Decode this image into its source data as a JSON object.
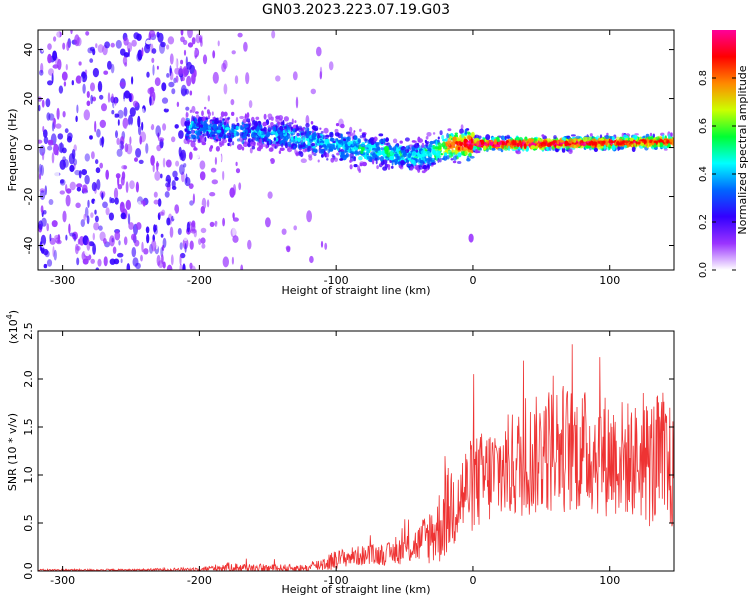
{
  "title": "GN03.2023.223.07.19.G03",
  "chart_data": [
    {
      "type": "heatmap",
      "xlabel": "Height of straight line (km)",
      "ylabel": "Frequency (Hz)",
      "xlim": [
        -318,
        147
      ],
      "ylim": [
        -50,
        48
      ],
      "xticks": [
        -300,
        -200,
        -100,
        0,
        100
      ],
      "yticks": [
        -40,
        -20,
        0,
        20,
        40
      ],
      "colorbar": {
        "label": "Normalized spectral amplitude",
        "range": [
          0,
          1
        ],
        "ticks": [
          "0.0",
          "0.2",
          "0.4",
          "0.6",
          "0.8"
        ],
        "tick_values": [
          0.0,
          0.2,
          0.4,
          0.6,
          0.8
        ],
        "colors": [
          "#ffffff",
          "#9a33ff",
          "#3300ff",
          "#0066ff",
          "#00ffff",
          "#00ff33",
          "#ccff00",
          "#ff8800",
          "#ff0000",
          "#ff0099"
        ]
      },
      "ridge": {
        "x": [
          -205,
          -180,
          -160,
          -140,
          -120,
          -100,
          -80,
          -60,
          -45,
          -35,
          -25,
          -15,
          0,
          50,
          100,
          147
        ],
        "frequency": [
          8,
          7,
          6,
          5,
          3,
          1,
          -1,
          -2,
          -4,
          -3,
          -1,
          1,
          1.5,
          1.5,
          2,
          2.5
        ],
        "amplitude": [
          0.35,
          0.35,
          0.35,
          0.35,
          0.4,
          0.4,
          0.45,
          0.45,
          0.4,
          0.45,
          0.55,
          0.8,
          0.9,
          0.9,
          0.85,
          0.8
        ]
      }
    },
    {
      "type": "line",
      "xlabel": "Height of straight line (km)",
      "ylabel": "SNR (10 * v/v)",
      "scale_label": "(x10",
      "scale_exp": "4",
      "scale_suffix": ")",
      "xlim": [
        -318,
        147
      ],
      "ylim": [
        0,
        2.5
      ],
      "xticks": [
        -300,
        -200,
        -100,
        0,
        100
      ],
      "yticks": [
        "0.0",
        "0.5",
        "1.0",
        "1.5",
        "2.0",
        "2.5"
      ],
      "ytick_values": [
        0.0,
        0.5,
        1.0,
        1.5,
        2.0,
        2.5
      ],
      "color": "#ee3333",
      "envelope": {
        "x": [
          -318,
          -250,
          -200,
          -180,
          -150,
          -120,
          -105,
          -90,
          -60,
          -40,
          -25,
          -15,
          0,
          20,
          40,
          60,
          80,
          100,
          120,
          140,
          147
        ],
        "mean": [
          0.01,
          0.01,
          0.02,
          0.04,
          0.03,
          0.03,
          0.1,
          0.15,
          0.18,
          0.28,
          0.45,
          0.7,
          0.9,
          1.05,
          1.15,
          1.3,
          1.25,
          1.2,
          1.15,
          1.1,
          1.0
        ],
        "spread": [
          0.01,
          0.01,
          0.02,
          0.05,
          0.04,
          0.04,
          0.1,
          0.1,
          0.12,
          0.2,
          0.4,
          0.5,
          0.5,
          0.55,
          0.6,
          0.7,
          0.65,
          0.65,
          0.6,
          0.8,
          0.6
        ]
      }
    }
  ]
}
